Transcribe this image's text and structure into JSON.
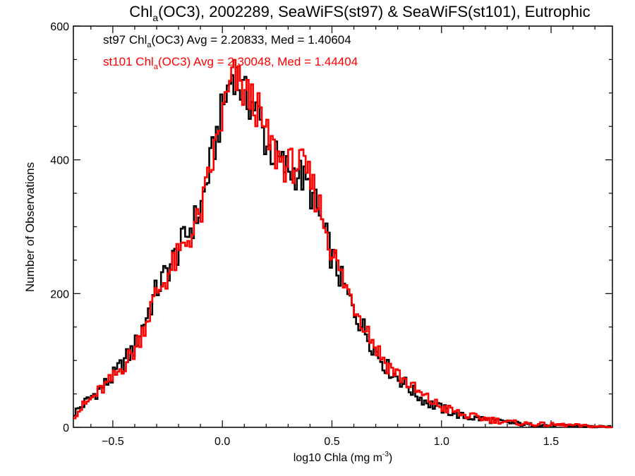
{
  "chart_data": {
    "type": "line",
    "title_main": "Chl",
    "title_sub": "a",
    "title_rest": "(OC3), 2002289, SeaWiFS(st97) & SeaWiFS(st101), Eutrophic",
    "xlabel_main": "log10 Chla (mg m",
    "xlabel_sup": "-3",
    "xlabel_end": ")",
    "ylabel": "Number of Observations",
    "xlim": [
      -0.68,
      1.78
    ],
    "ylim": [
      0,
      600
    ],
    "x_ticks": [
      {
        "value": -0.5,
        "label": "−0.5"
      },
      {
        "value": 0.0,
        "label": "0.0"
      },
      {
        "value": 0.5,
        "label": "0.5"
      },
      {
        "value": 1.0,
        "label": "1.0"
      },
      {
        "value": 1.5,
        "label": "1.5"
      }
    ],
    "y_ticks": [
      {
        "value": 0,
        "label": "0"
      },
      {
        "value": 200,
        "label": "200"
      },
      {
        "value": 400,
        "label": "400"
      },
      {
        "value": 600,
        "label": "600"
      }
    ],
    "series": [
      {
        "id": "st97",
        "color": "#000000",
        "legend": {
          "prefix": "st97 Chl",
          "sub": "a",
          "suffix": "(OC3) Avg = 2.20833, Med = 1.40604"
        },
        "points": [
          [
            -0.68,
            20
          ],
          [
            -0.6,
            45
          ],
          [
            -0.5,
            75
          ],
          [
            -0.4,
            120
          ],
          [
            -0.3,
            205
          ],
          [
            -0.2,
            265
          ],
          [
            -0.1,
            325
          ],
          [
            0.0,
            475
          ],
          [
            0.05,
            535
          ],
          [
            0.1,
            495
          ],
          [
            0.15,
            480
          ],
          [
            0.2,
            425
          ],
          [
            0.25,
            400
          ],
          [
            0.3,
            385
          ],
          [
            0.35,
            380
          ],
          [
            0.4,
            355
          ],
          [
            0.45,
            310
          ],
          [
            0.5,
            255
          ],
          [
            0.55,
            215
          ],
          [
            0.6,
            175
          ],
          [
            0.65,
            145
          ],
          [
            0.7,
            115
          ],
          [
            0.75,
            90
          ],
          [
            0.8,
            75
          ],
          [
            0.85,
            60
          ],
          [
            0.9,
            45
          ],
          [
            0.95,
            35
          ],
          [
            1.0,
            28
          ],
          [
            1.05,
            22
          ],
          [
            1.1,
            16
          ],
          [
            1.2,
            12
          ],
          [
            1.3,
            7
          ],
          [
            1.4,
            4
          ],
          [
            1.5,
            3
          ],
          [
            1.6,
            2
          ],
          [
            1.78,
            0
          ]
        ]
      },
      {
        "id": "st101",
        "color": "#ff0000",
        "legend": {
          "prefix": "st101 Chl",
          "sub": "a",
          "suffix": "(OC3) Avg = 2.30048, Med = 1.44404"
        },
        "points": [
          [
            -0.68,
            18
          ],
          [
            -0.6,
            42
          ],
          [
            -0.5,
            72
          ],
          [
            -0.4,
            115
          ],
          [
            -0.3,
            200
          ],
          [
            -0.2,
            255
          ],
          [
            -0.1,
            315
          ],
          [
            0.0,
            465
          ],
          [
            0.05,
            525
          ],
          [
            0.1,
            500
          ],
          [
            0.15,
            485
          ],
          [
            0.2,
            435
          ],
          [
            0.25,
            405
          ],
          [
            0.3,
            390
          ],
          [
            0.35,
            395
          ],
          [
            0.4,
            370
          ],
          [
            0.45,
            325
          ],
          [
            0.5,
            265
          ],
          [
            0.55,
            220
          ],
          [
            0.6,
            185
          ],
          [
            0.65,
            155
          ],
          [
            0.7,
            120
          ],
          [
            0.75,
            95
          ],
          [
            0.8,
            80
          ],
          [
            0.85,
            65
          ],
          [
            0.9,
            50
          ],
          [
            0.95,
            40
          ],
          [
            1.0,
            30
          ],
          [
            1.05,
            25
          ],
          [
            1.1,
            18
          ],
          [
            1.2,
            13
          ],
          [
            1.3,
            8
          ],
          [
            1.4,
            5
          ],
          [
            1.5,
            4
          ],
          [
            1.6,
            3
          ],
          [
            1.78,
            0
          ]
        ]
      }
    ]
  }
}
